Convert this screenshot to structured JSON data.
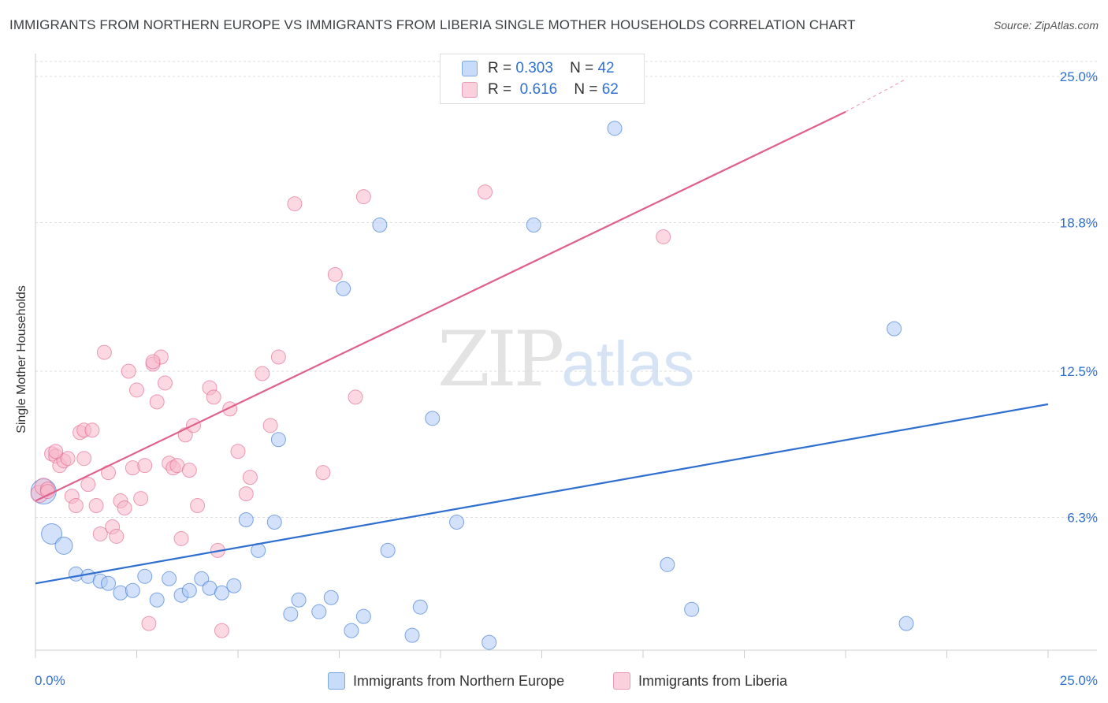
{
  "header": {
    "title": "IMMIGRANTS FROM NORTHERN EUROPE VS IMMIGRANTS FROM LIBERIA SINGLE MOTHER HOUSEHOLDS CORRELATION CHART",
    "source": "Source: ZipAtlas.com"
  },
  "legend": {
    "blue": {
      "r_label": "R =",
      "r_value": "0.303",
      "n_label": "N =",
      "n_value": "42"
    },
    "pink": {
      "r_label": "R =",
      "r_value": "0.616",
      "n_label": "N =",
      "n_value": "62"
    }
  },
  "watermark": {
    "zip": "ZIP",
    "atlas": "atlas"
  },
  "colors": {
    "blue": "#2f6fd0",
    "blue_fill": "#aecbf5",
    "pink": "#e0608c",
    "pink_fill": "#f7b8cb",
    "grid": "#dddddd",
    "tick_label": "#2f6fd0"
  },
  "chart_data": {
    "type": "scatter",
    "xlabel": "",
    "ylabel": "Single Mother Households",
    "xlim": [
      0,
      25
    ],
    "ylim": [
      0,
      25.8
    ],
    "x_tick_labels": [
      "0.0%",
      "25.0%"
    ],
    "y_ticks": [
      6.3,
      12.5,
      18.8,
      25.0
    ],
    "y_tick_labels": [
      "6.3%",
      "12.5%",
      "18.8%",
      "25.0%"
    ],
    "grid": "horizontal dashed",
    "legend_position": "top-center",
    "series": [
      {
        "name": "Immigrants from Northern Europe",
        "color": "blue",
        "r": 0.303,
        "n": 42,
        "trend": {
          "x": [
            0,
            25
          ],
          "y": [
            3.5,
            11.1
          ]
        },
        "points": [
          [
            0.2,
            7.4,
            16
          ],
          [
            0.4,
            5.6,
            13
          ],
          [
            0.7,
            5.1,
            11
          ],
          [
            1.0,
            3.9,
            9
          ],
          [
            1.3,
            3.8,
            9
          ],
          [
            1.6,
            3.6,
            9
          ],
          [
            1.8,
            3.5,
            9
          ],
          [
            2.1,
            3.1,
            9
          ],
          [
            2.4,
            3.2,
            9
          ],
          [
            2.7,
            3.8,
            9
          ],
          [
            3.0,
            2.8,
            9
          ],
          [
            3.3,
            3.7,
            9
          ],
          [
            3.6,
            3.0,
            9
          ],
          [
            3.8,
            3.2,
            9
          ],
          [
            4.1,
            3.7,
            9
          ],
          [
            4.3,
            3.3,
            9
          ],
          [
            4.6,
            3.1,
            9
          ],
          [
            4.9,
            3.4,
            9
          ],
          [
            5.2,
            6.2,
            9
          ],
          [
            5.5,
            4.9,
            9
          ],
          [
            5.9,
            6.1,
            9
          ],
          [
            6.0,
            9.6,
            9
          ],
          [
            6.3,
            2.2,
            9
          ],
          [
            6.5,
            2.8,
            9
          ],
          [
            7.0,
            2.3,
            9
          ],
          [
            7.3,
            2.9,
            9
          ],
          [
            7.6,
            16.0,
            9
          ],
          [
            7.8,
            1.5,
            9
          ],
          [
            8.1,
            2.1,
            9
          ],
          [
            8.5,
            18.7,
            9
          ],
          [
            8.7,
            4.9,
            9
          ],
          [
            9.3,
            1.3,
            9
          ],
          [
            9.5,
            2.5,
            9
          ],
          [
            9.8,
            10.5,
            9
          ],
          [
            10.4,
            6.1,
            9
          ],
          [
            11.2,
            1.0,
            9
          ],
          [
            12.3,
            18.7,
            9
          ],
          [
            14.3,
            22.8,
            9
          ],
          [
            15.6,
            4.3,
            9
          ],
          [
            16.2,
            2.4,
            9
          ],
          [
            21.2,
            14.3,
            9
          ],
          [
            21.5,
            1.8,
            9
          ]
        ]
      },
      {
        "name": "Immigrants from Liberia",
        "color": "pink",
        "r": 0.616,
        "n": 62,
        "trend": {
          "x": [
            0,
            20.0
          ],
          "y": [
            7.0,
            23.5
          ]
        },
        "trend_dashed": {
          "x": [
            20.0,
            21.5
          ],
          "y": [
            23.5,
            24.9
          ]
        },
        "points": [
          [
            0.1,
            7.3,
            11
          ],
          [
            0.2,
            7.6,
            11
          ],
          [
            0.3,
            7.5,
            9
          ],
          [
            0.4,
            9.0,
            9
          ],
          [
            0.5,
            8.9,
            9
          ],
          [
            0.6,
            8.5,
            9
          ],
          [
            0.7,
            8.7,
            9
          ],
          [
            0.8,
            8.8,
            9
          ],
          [
            0.9,
            7.2,
            9
          ],
          [
            1.0,
            6.8,
            9
          ],
          [
            1.1,
            9.9,
            9
          ],
          [
            1.2,
            10.0,
            9
          ],
          [
            1.3,
            7.7,
            9
          ],
          [
            1.4,
            10.0,
            9
          ],
          [
            1.5,
            6.8,
            9
          ],
          [
            1.6,
            5.6,
            9
          ],
          [
            1.7,
            13.3,
            9
          ],
          [
            1.8,
            8.2,
            9
          ],
          [
            1.9,
            5.9,
            9
          ],
          [
            2.0,
            5.5,
            9
          ],
          [
            2.1,
            7.0,
            9
          ],
          [
            2.2,
            6.7,
            9
          ],
          [
            2.3,
            12.5,
            9
          ],
          [
            2.4,
            8.4,
            9
          ],
          [
            2.5,
            11.7,
            9
          ],
          [
            2.6,
            7.1,
            9
          ],
          [
            2.7,
            8.5,
            9
          ],
          [
            2.9,
            12.8,
            9
          ],
          [
            3.0,
            11.2,
            9
          ],
          [
            3.1,
            13.1,
            9
          ],
          [
            3.2,
            12.0,
            9
          ],
          [
            3.3,
            8.6,
            9
          ],
          [
            3.4,
            8.4,
            9
          ],
          [
            3.5,
            8.5,
            9
          ],
          [
            3.6,
            5.4,
            9
          ],
          [
            3.7,
            9.8,
            9
          ],
          [
            3.8,
            8.3,
            9
          ],
          [
            3.9,
            10.2,
            9
          ],
          [
            4.0,
            6.8,
            9
          ],
          [
            4.3,
            11.8,
            9
          ],
          [
            4.4,
            11.4,
            9
          ],
          [
            4.5,
            4.9,
            9
          ],
          [
            4.6,
            1.5,
            9
          ],
          [
            4.8,
            10.9,
            9
          ],
          [
            5.0,
            9.1,
            9
          ],
          [
            5.2,
            7.3,
            9
          ],
          [
            5.3,
            8.0,
            9
          ],
          [
            5.6,
            12.4,
            9
          ],
          [
            5.8,
            10.2,
            9
          ],
          [
            6.0,
            13.1,
            9
          ],
          [
            6.4,
            19.6,
            9
          ],
          [
            7.1,
            8.2,
            9
          ],
          [
            7.4,
            16.6,
            9
          ],
          [
            7.9,
            11.4,
            9
          ],
          [
            8.1,
            19.9,
            9
          ],
          [
            11.1,
            20.1,
            9
          ],
          [
            15.5,
            18.2,
            9
          ],
          [
            2.8,
            1.8,
            9
          ],
          [
            1.2,
            8.8,
            9
          ],
          [
            0.5,
            9.1,
            9
          ],
          [
            2.9,
            12.9,
            9
          ],
          [
            0.3,
            7.4,
            9
          ]
        ]
      }
    ]
  }
}
